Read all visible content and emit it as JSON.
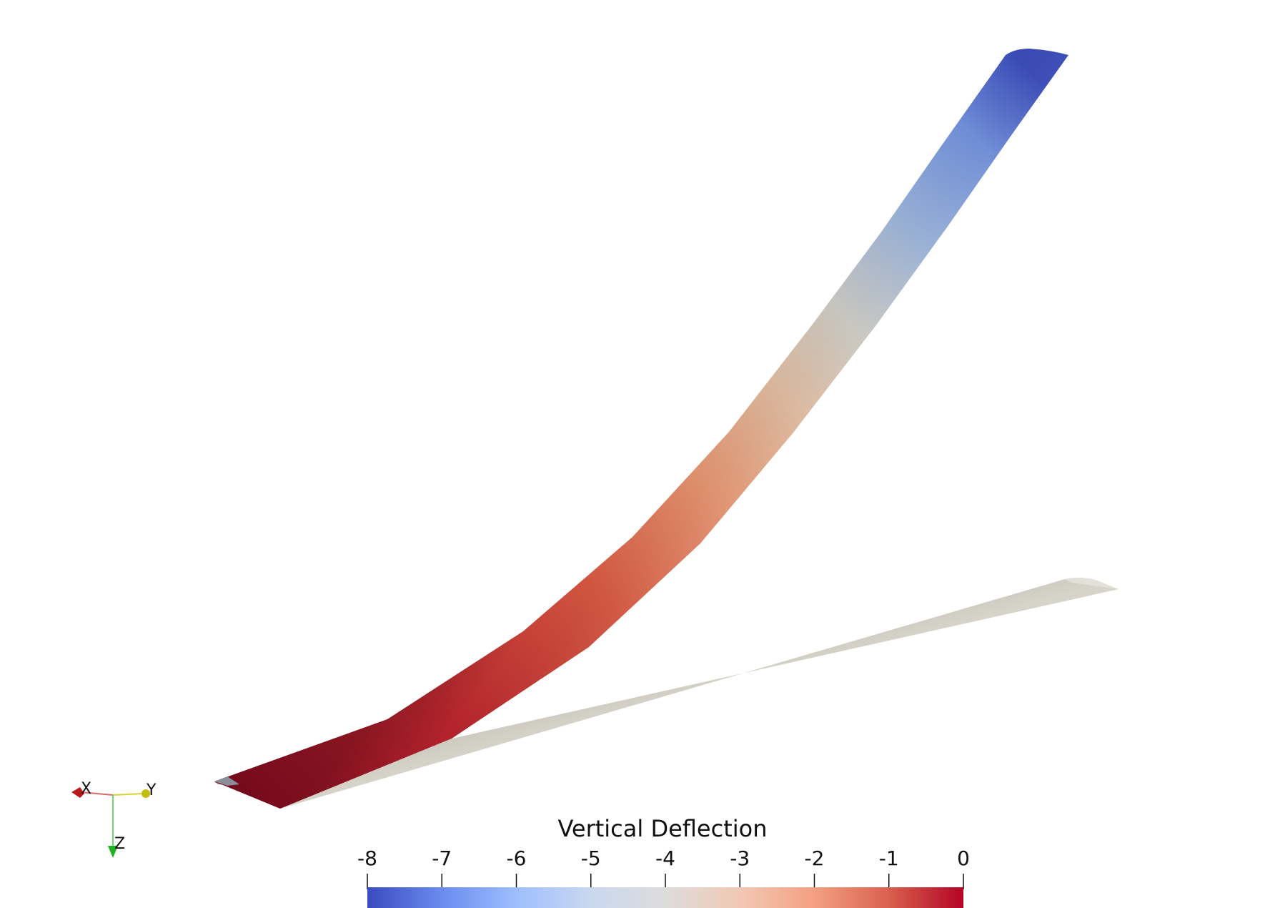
{
  "scene": {
    "background": "#ffffff",
    "deformed_wing": {
      "colormap": "coolwarm",
      "tip_value": -8,
      "root_value": 0
    },
    "undeformed_wing": {
      "color": "#c8c4b8"
    }
  },
  "orientation_axes": {
    "x_label": "X",
    "y_label": "Y",
    "z_label": "Z",
    "x_color": "#c41a1a",
    "y_color": "#c8c21a",
    "z_color": "#1ec41e"
  },
  "colorbar": {
    "title": "Vertical Deflection",
    "ticks": [
      "-8",
      "-7",
      "-6",
      "-5",
      "-4",
      "-3",
      "-2",
      "-1",
      "0"
    ],
    "range": [
      -8,
      0
    ],
    "colors": [
      "#3b4cc0",
      "#6a8bef",
      "#9ebeff",
      "#c9d8ef",
      "#dddcdc",
      "#f2c8b4",
      "#f3a081",
      "#d9604d",
      "#b40426"
    ]
  }
}
